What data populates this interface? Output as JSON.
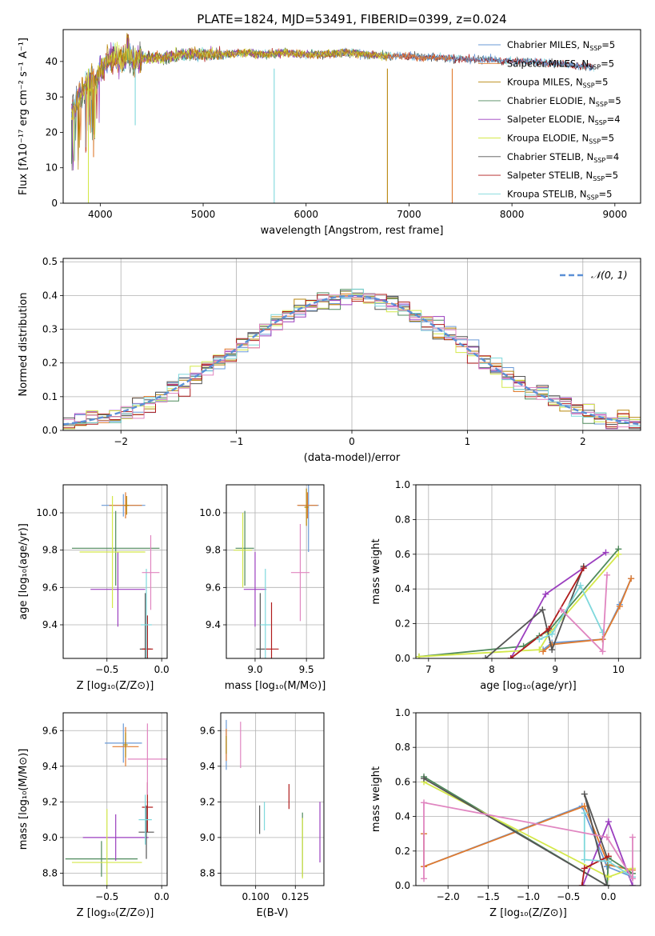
{
  "figure": {
    "title": "PLATE=1824, MJD=53491, FIBERID=0399, z=0.024"
  },
  "colors": {
    "c0": "#6a9ad6",
    "c1": "#e07a2e",
    "c2": "#b8860b",
    "c3": "#4f8a5c",
    "c4": "#9b3fbf",
    "c5": "#d4e84a",
    "c6": "#555555",
    "c7": "#b01c1c",
    "c8": "#7fd8dc",
    "c9": "#e085c0",
    "normal": "#5b8fd6"
  },
  "chart_data": [
    {
      "id": "spectrum",
      "type": "line",
      "xlabel": "wavelength [Angstrom, rest frame]",
      "ylabel": "Flux [fλ10⁻¹⁷ erg cm⁻² s⁻¹ A⁻¹]",
      "xlim": [
        3640,
        9250
      ],
      "ylim": [
        0,
        49
      ],
      "xticks": [
        4000,
        5000,
        6000,
        7000,
        8000,
        9000
      ],
      "yticks": [
        0,
        10,
        20,
        30,
        40
      ],
      "grid": false,
      "legend": "top-right",
      "base_curve": {
        "x": [
          3720,
          3800,
          3900,
          3950,
          4000,
          4100,
          4200,
          4300,
          4400,
          4600,
          4800,
          5000,
          5200,
          5400,
          5600,
          5800,
          6000,
          6200,
          6400,
          6600,
          6800,
          7000,
          7200,
          7400,
          7600,
          7800,
          8000,
          8200,
          8400,
          8600,
          8800
        ],
        "y": [
          26,
          30,
          35,
          33,
          38,
          41,
          41,
          40,
          41,
          41,
          42,
          42,
          42,
          42.5,
          42,
          42.5,
          42,
          42,
          42.5,
          42,
          41.5,
          41.5,
          41,
          41,
          40.5,
          40.5,
          40,
          40,
          39.5,
          39,
          38.5
        ]
      },
      "series": [
        {
          "name": "Chabrier MILES, N",
          "sub": "SSP",
          "suffix": "=5",
          "color_key": "c0",
          "x_end": 8800
        },
        {
          "name": "Salpeter MILES, N",
          "sub": "SSP",
          "suffix": "=5",
          "color_key": "c1",
          "x_end": 7420
        },
        {
          "name": "Kroupa MILES, N",
          "sub": "SSP",
          "suffix": "=5",
          "color_key": "c2",
          "x_end": 6790
        },
        {
          "name": "Chabrier ELODIE, N",
          "sub": "SSP",
          "suffix": "=5",
          "color_key": "c3",
          "x_end": 6790
        },
        {
          "name": "Salpeter ELODIE, N",
          "sub": "SSP",
          "suffix": "=4",
          "color_key": "c4",
          "x_end": 6790
        },
        {
          "name": "Kroupa ELODIE, N",
          "sub": "SSP",
          "suffix": "=5",
          "color_key": "c5",
          "x_end": 6790
        },
        {
          "name": "Chabrier STELIB, N",
          "sub": "SSP",
          "suffix": "=4",
          "color_key": "c6",
          "x_end": 8800
        },
        {
          "name": "Salpeter STELIB, N",
          "sub": "SSP",
          "suffix": "=5",
          "color_key": "c7",
          "x_end": 8800
        },
        {
          "name": "Kroupa STELIB, N",
          "sub": "SSP",
          "suffix": "=5",
          "color_key": "c8",
          "x_end": 8800
        }
      ],
      "features": [
        {
          "x": 3885,
          "y_low": 0,
          "color_key": "c5"
        },
        {
          "x": 3935,
          "y_low": 13,
          "color_key": "c1"
        },
        {
          "x": 4340,
          "y_low": 22,
          "color_key": "c8"
        },
        {
          "x": 5690,
          "y_low": 0,
          "color_key": "c8"
        },
        {
          "x": 6790,
          "y_low": 0,
          "color_key": "c2"
        },
        {
          "x": 7420,
          "y_low": 0,
          "color_key": "c1"
        }
      ]
    },
    {
      "id": "residuals",
      "type": "bar",
      "xlabel": "(data-model)/error",
      "ylabel": "Normed distribution",
      "xlim": [
        -2.5,
        2.5
      ],
      "ylim": [
        0,
        0.51
      ],
      "xticks": [
        -2,
        -1,
        0,
        1,
        2
      ],
      "xtick_labels": [
        "−2",
        "−1",
        "0",
        "1",
        "2"
      ],
      "yticks": [
        0,
        0.1,
        0.2,
        0.3,
        0.4,
        0.5
      ],
      "ytick_labels": [
        "0.0",
        "0.1",
        "0.2",
        "0.3",
        "0.4",
        "0.5"
      ],
      "grid": true,
      "legend": "top-right",
      "legend_label": "𝒩(0, 1)",
      "bin_width": 0.1,
      "bin_start": -2.5,
      "bin_end": 2.5,
      "normal": {
        "mean": 0,
        "sigma": 1
      }
    },
    {
      "id": "z-age",
      "type": "scatter",
      "xlabel": "Z [log₁₀(Z/Z⊙)]",
      "ylabel": "age  [log₁₀(age/yr)]",
      "xlim": [
        -0.9,
        0.05
      ],
      "ylim": [
        9.22,
        10.15
      ],
      "xticks": [
        -0.5,
        0.0
      ],
      "xtick_labels": [
        "−0.5",
        "0.0"
      ],
      "yticks": [
        9.4,
        9.6,
        9.8,
        10.0
      ],
      "ytick_labels": [
        "9.4",
        "9.6",
        "9.8",
        "10.0"
      ],
      "grid": true,
      "points": [
        {
          "color_key": "c0",
          "x": -0.35,
          "y": 10.04,
          "xerr": 0.2,
          "yerr": 0.06
        },
        {
          "color_key": "c1",
          "x": -0.33,
          "y": 10.04,
          "xerr": 0.15,
          "yerr": 0.07
        },
        {
          "color_key": "c2",
          "x": -0.32,
          "y": 10.04,
          "xerr": 0.02,
          "yerr": 0.05
        },
        {
          "color_key": "c3",
          "x": -0.42,
          "y": 9.81,
          "xerr": 0.4,
          "yerr": 0.2
        },
        {
          "color_key": "c4",
          "x": -0.4,
          "y": 9.59,
          "xerr": 0.25,
          "yerr": 0.2
        },
        {
          "color_key": "c5",
          "x": -0.45,
          "y": 9.79,
          "xerr": 0.3,
          "yerr": 0.3
        },
        {
          "color_key": "c6",
          "x": -0.15,
          "y": 9.27,
          "xerr": 0.05,
          "yerr": 0.3
        },
        {
          "color_key": "c7",
          "x": -0.13,
          "y": 9.27,
          "xerr": 0.05,
          "yerr": 0.18
        },
        {
          "color_key": "c8",
          "x": -0.14,
          "y": 9.4,
          "xerr": 0.05,
          "yerr": 0.3
        },
        {
          "color_key": "c9",
          "x": -0.1,
          "y": 9.68,
          "xerr": 0.08,
          "yerr": 0.2
        }
      ]
    },
    {
      "id": "mass-age",
      "type": "scatter",
      "xlabel": "mass [log₁₀(M/M⊙)]",
      "ylabel": "",
      "xlim": [
        8.72,
        9.67
      ],
      "ylim": [
        9.22,
        10.15
      ],
      "xticks": [
        9.0,
        9.5
      ],
      "xtick_labels": [
        "9.0",
        "9.5"
      ],
      "yticks": [
        9.4,
        9.6,
        9.8,
        10.0
      ],
      "ytick_labels": [
        "9.4",
        "9.6",
        "9.8",
        "10.0"
      ],
      "grid": true,
      "points": [
        {
          "color_key": "c0",
          "x": 9.52,
          "y": 10.04,
          "xerr": 0.1,
          "yerr": 0.25
        },
        {
          "color_key": "c1",
          "x": 9.51,
          "y": 10.04,
          "xerr": 0.1,
          "yerr": 0.07
        },
        {
          "color_key": "c2",
          "x": 9.5,
          "y": 10.03,
          "xerr": 0.02,
          "yerr": 0.1
        },
        {
          "color_key": "c3",
          "x": 8.9,
          "y": 9.81,
          "xerr": 0.09,
          "yerr": 0.2
        },
        {
          "color_key": "c4",
          "x": 9.0,
          "y": 9.59,
          "xerr": 0.11,
          "yerr": 0.2
        },
        {
          "color_key": "c5",
          "x": 8.88,
          "y": 9.8,
          "xerr": 0.09,
          "yerr": 0.2
        },
        {
          "color_key": "c6",
          "x": 9.05,
          "y": 9.27,
          "xerr": 0.04,
          "yerr": 0.3
        },
        {
          "color_key": "c7",
          "x": 9.16,
          "y": 9.27,
          "xerr": 0.07,
          "yerr": 0.25
        },
        {
          "color_key": "c8",
          "x": 9.1,
          "y": 9.4,
          "xerr": 0.05,
          "yerr": 0.3
        },
        {
          "color_key": "c9",
          "x": 9.44,
          "y": 9.68,
          "xerr": 0.09,
          "yerr": 0.26
        }
      ]
    },
    {
      "id": "age-weight",
      "type": "line",
      "xlabel": "age  [log₁₀(age/yr)]",
      "ylabel": "mass weight",
      "xlim": [
        6.8,
        10.35
      ],
      "ylim": [
        0,
        1.0
      ],
      "xticks": [
        7,
        8,
        9,
        10
      ],
      "yticks": [
        0,
        0.2,
        0.4,
        0.6,
        0.8,
        1.0
      ],
      "ytick_labels": [
        "0.0",
        "0.2",
        "0.4",
        "0.6",
        "0.8",
        "1.0"
      ],
      "grid": true,
      "series": [
        {
          "color_key": "c0",
          "x": [
            8.81,
            8.95,
            9.75,
            10.02,
            10.2
          ],
          "y": [
            0.05,
            0.09,
            0.11,
            0.31,
            0.46
          ]
        },
        {
          "color_key": "c1",
          "x": [
            8.81,
            8.95,
            9.75,
            10.02,
            10.2
          ],
          "y": [
            0.04,
            0.08,
            0.11,
            0.3,
            0.46
          ]
        },
        {
          "color_key": "c3",
          "x": [
            6.85,
            8.5,
            8.75,
            8.9,
            10.0
          ],
          "y": [
            0.01,
            0.07,
            0.13,
            0.16,
            0.63
          ]
        },
        {
          "color_key": "c4",
          "x": [
            8.3,
            8.85,
            9.8
          ],
          "y": [
            0.0,
            0.37,
            0.61
          ]
        },
        {
          "color_key": "c5",
          "x": [
            6.85,
            8.75,
            8.9,
            10.0
          ],
          "y": [
            0.01,
            0.05,
            0.14,
            0.6
          ]
        },
        {
          "color_key": "c6",
          "x": [
            7.9,
            8.8,
            8.95,
            9.45
          ],
          "y": [
            0.0,
            0.28,
            0.05,
            0.53
          ]
        },
        {
          "color_key": "c7",
          "x": [
            8.3,
            8.9,
            9.45
          ],
          "y": [
            0.0,
            0.17,
            0.52
          ]
        },
        {
          "color_key": "c8",
          "x": [
            8.75,
            8.95,
            9.4,
            9.75
          ],
          "y": [
            0.11,
            0.14,
            0.42,
            0.15
          ]
        },
        {
          "color_key": "c9",
          "x": [
            9.1,
            9.75,
            9.82
          ],
          "y": [
            0.28,
            0.04,
            0.48
          ]
        }
      ]
    },
    {
      "id": "z-mass",
      "type": "scatter",
      "xlabel": "Z [log₁₀(Z/Z⊙)]",
      "ylabel": "mass [log₁₀(M/M⊙)]",
      "xlim": [
        -0.9,
        0.05
      ],
      "ylim": [
        8.73,
        9.7
      ],
      "xticks": [
        -0.5,
        0.0
      ],
      "xtick_labels": [
        "−0.5",
        "0.0"
      ],
      "yticks": [
        8.8,
        9.0,
        9.2,
        9.4,
        9.6
      ],
      "ytick_labels": [
        "8.8",
        "9.0",
        "9.2",
        "9.4",
        "9.6"
      ],
      "grid": true,
      "points": [
        {
          "color_key": "c0",
          "x": -0.35,
          "y": 9.53,
          "xerr": 0.17,
          "yerr": 0.11
        },
        {
          "color_key": "c1",
          "x": -0.33,
          "y": 9.51,
          "xerr": 0.12,
          "yerr": 0.11
        },
        {
          "color_key": "c2",
          "x": -0.33,
          "y": 9.52,
          "xerr": 0.02,
          "yerr": 0.07
        },
        {
          "color_key": "c3",
          "x": -0.55,
          "y": 8.88,
          "xerr": 0.33,
          "yerr": 0.1
        },
        {
          "color_key": "c4",
          "x": -0.42,
          "y": 9.0,
          "xerr": 0.3,
          "yerr": 0.13
        },
        {
          "color_key": "c5",
          "x": -0.5,
          "y": 8.86,
          "xerr": 0.32,
          "yerr": 0.3
        },
        {
          "color_key": "c6",
          "x": -0.14,
          "y": 9.03,
          "xerr": 0.07,
          "yerr": 0.15
        },
        {
          "color_key": "c7",
          "x": -0.13,
          "y": 9.17,
          "xerr": 0.05,
          "yerr": 0.14
        },
        {
          "color_key": "c8",
          "x": -0.15,
          "y": 9.1,
          "xerr": 0.06,
          "yerr": 0.14
        },
        {
          "color_key": "c9",
          "x": -0.13,
          "y": 9.44,
          "xerr": 0.18,
          "yerr": 0.2
        }
      ]
    },
    {
      "id": "ebv-mass",
      "type": "scatter",
      "xlabel": "E(B-V)",
      "ylabel": "",
      "xlim": [
        0.078,
        0.143
      ],
      "ylim": [
        8.73,
        9.7
      ],
      "xticks": [
        0.1,
        0.125
      ],
      "xtick_labels": [
        "0.100",
        "0.125"
      ],
      "yticks": [
        8.8,
        9.0,
        9.2,
        9.4,
        9.6
      ],
      "ytick_labels": [
        "8.8",
        "9.0",
        "9.2",
        "9.4",
        "9.6"
      ],
      "grid": true,
      "points": [
        {
          "color_key": "c0",
          "x": 0.0815,
          "y": 9.52,
          "xerr": 0,
          "yerr": 0.14
        },
        {
          "color_key": "c1",
          "x": 0.0815,
          "y": 9.52,
          "xerr": 0,
          "yerr": 0.09
        },
        {
          "color_key": "c2",
          "x": 0.0815,
          "y": 9.52,
          "xerr": 0,
          "yerr": 0.05
        },
        {
          "color_key": "c3",
          "x": 0.1295,
          "y": 8.96,
          "xerr": 0,
          "yerr": 0.18
        },
        {
          "color_key": "c4",
          "x": 0.1405,
          "y": 9.03,
          "xerr": 0,
          "yerr": 0.17
        },
        {
          "color_key": "c5",
          "x": 0.1295,
          "y": 8.94,
          "xerr": 0,
          "yerr": 0.17
        },
        {
          "color_key": "c6",
          "x": 0.1025,
          "y": 9.1,
          "xerr": 0,
          "yerr": 0.08
        },
        {
          "color_key": "c7",
          "x": 0.121,
          "y": 9.23,
          "xerr": 0,
          "yerr": 0.07
        },
        {
          "color_key": "c8",
          "x": 0.1055,
          "y": 9.12,
          "xerr": 0,
          "yerr": 0.08
        },
        {
          "color_key": "c9",
          "x": 0.0905,
          "y": 9.52,
          "xerr": 0,
          "yerr": 0.13
        }
      ]
    },
    {
      "id": "z-weight",
      "type": "line",
      "xlabel": "Z [log₁₀(Z/Z⊙)]",
      "ylabel": "mass weight",
      "xlim": [
        -2.4,
        0.4
      ],
      "ylim": [
        0,
        1.0
      ],
      "xticks": [
        -2.0,
        -1.5,
        -1.0,
        -0.5,
        0.0
      ],
      "xtick_labels": [
        "−2.0",
        "−1.5",
        "−1.0",
        "−0.5",
        "0.0"
      ],
      "yticks": [
        0,
        0.2,
        0.4,
        0.6,
        0.8,
        1.0
      ],
      "ytick_labels": [
        "0.0",
        "0.2",
        "0.4",
        "0.6",
        "0.8",
        "1.0"
      ],
      "grid": true,
      "series": [
        {
          "color_key": "c0",
          "x": [
            -2.3,
            -2.3,
            -0.33,
            -0.02,
            0.3
          ],
          "y": [
            0.3,
            0.11,
            0.46,
            0.11,
            0.05
          ]
        },
        {
          "color_key": "c1",
          "x": [
            -2.3,
            -2.3,
            -0.3,
            0.0,
            0.3
          ],
          "y": [
            0.3,
            0.11,
            0.46,
            0.12,
            0.09
          ]
        },
        {
          "color_key": "c3",
          "x": [
            -2.3,
            -0.02,
            0.0,
            0.3
          ],
          "y": [
            0.63,
            0.0,
            0.16,
            0.07
          ]
        },
        {
          "color_key": "c4",
          "x": [
            -0.32,
            0.0,
            0.3
          ],
          "y": [
            0.0,
            0.37,
            0.0
          ]
        },
        {
          "color_key": "c5",
          "x": [
            -2.3,
            0.0,
            0.3
          ],
          "y": [
            0.6,
            0.05,
            0.1
          ]
        },
        {
          "color_key": "c6",
          "x": [
            -2.3,
            -0.02,
            -0.3,
            0.0
          ],
          "y": [
            0.62,
            0.0,
            0.53,
            0.14
          ]
        },
        {
          "color_key": "c7",
          "x": [
            -0.33,
            -0.3,
            0.0
          ],
          "y": [
            0.0,
            0.1,
            0.17
          ]
        },
        {
          "color_key": "c8",
          "x": [
            -0.3,
            -0.3,
            0.0,
            0.3
          ],
          "y": [
            0.42,
            0.15,
            0.14,
            0.05
          ]
        },
        {
          "color_key": "c9",
          "x": [
            -2.3,
            -2.3,
            -0.02,
            0.3,
            0.3
          ],
          "y": [
            0.04,
            0.48,
            0.28,
            0.04,
            0.28
          ]
        }
      ]
    }
  ]
}
